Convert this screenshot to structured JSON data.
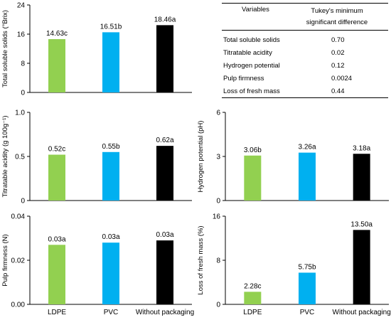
{
  "colors": {
    "LDPE": "#92d050",
    "PVC": "#00b0f0",
    "Without packaging": "#000000"
  },
  "chart_data": [
    {
      "type": "bar",
      "ylabel": "Total soluble solids (°Brix)",
      "categories": [
        "LDPE",
        "PVC",
        "Without packaging"
      ],
      "values": [
        14.63,
        16.51,
        18.46
      ],
      "data_labels": [
        "14.63c",
        "16.51b",
        "18.46a"
      ],
      "ylim": [
        0,
        24
      ],
      "yticks": [
        "0",
        "8",
        "16",
        "24"
      ],
      "show_xlabels": false
    },
    {
      "type": "bar",
      "ylabel": "Titratable acidity (g 100g⁻¹)",
      "categories": [
        "LDPE",
        "PVC",
        "Without packaging"
      ],
      "values": [
        0.52,
        0.55,
        0.62
      ],
      "data_labels": [
        "0.52c",
        "0.55b",
        "0.62a"
      ],
      "ylim": [
        0,
        1.0
      ],
      "yticks": [
        "0",
        "0.5",
        "1.0"
      ],
      "show_xlabels": false
    },
    {
      "type": "bar",
      "ylabel": "Hydrogen potential (pH)",
      "categories": [
        "LDPE",
        "PVC",
        "Without packaging"
      ],
      "values": [
        3.06,
        3.26,
        3.18
      ],
      "data_labels": [
        "3.06b",
        "3.26a",
        "3.18a"
      ],
      "ylim": [
        0,
        6
      ],
      "yticks": [
        "0",
        "3",
        "6"
      ],
      "show_xlabels": false
    },
    {
      "type": "bar",
      "ylabel": "Pulp firmness (N)",
      "categories": [
        "LDPE",
        "PVC",
        "Without packaging"
      ],
      "values": [
        0.027,
        0.028,
        0.029
      ],
      "data_labels": [
        "0.03a",
        "0.03a",
        "0.03a"
      ],
      "ylim": [
        0,
        0.04
      ],
      "yticks": [
        "0.00",
        "0.02",
        "0.04"
      ],
      "show_xlabels": true
    },
    {
      "type": "bar",
      "ylabel": "Loss of fresh mass (%)",
      "categories": [
        "LDPE",
        "PVC",
        "Without packaging"
      ],
      "values": [
        2.28,
        5.75,
        13.5
      ],
      "data_labels": [
        "2.28c",
        "5.75b",
        "13.50a"
      ],
      "ylim": [
        0,
        16
      ],
      "yticks": [
        "0",
        "8",
        "16"
      ],
      "show_xlabels": true
    }
  ],
  "table": {
    "header": {
      "variables": "Variables",
      "tukey_line1": "Tukey's minimum",
      "tukey_line2": "significant difference"
    },
    "rows": [
      {
        "variable": "Total soluble solids",
        "value": "0.70"
      },
      {
        "variable": "Titratable acidity",
        "value": "0.02"
      },
      {
        "variable": "Hydrogen potential",
        "value": "0.12"
      },
      {
        "variable": "Pulp firmness",
        "value": "0.0024"
      },
      {
        "variable": "Loss of fresh mass",
        "value": "0.44"
      }
    ]
  }
}
